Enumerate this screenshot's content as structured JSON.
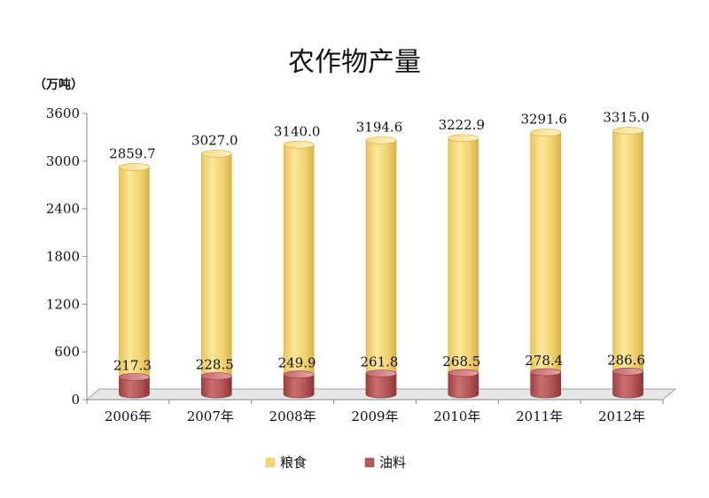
{
  "chart_data": {
    "type": "bar",
    "title": "农作物产量",
    "unit_label": "（万吨）",
    "categories": [
      "2006年",
      "2007年",
      "2008年",
      "2009年",
      "2010年",
      "2011年",
      "2012年"
    ],
    "series": [
      {
        "name": "粮食",
        "values": [
          2859.7,
          3027.0,
          3140.0,
          3194.6,
          3222.9,
          3291.6,
          3315.0
        ],
        "labels": [
          "2859.7",
          "3027.0",
          "3140.0",
          "3194.6",
          "3222.9",
          "3291.6",
          "3315.0"
        ],
        "color": "#F5D77A"
      },
      {
        "name": "油料",
        "values": [
          217.3,
          228.5,
          249.9,
          261.8,
          268.5,
          278.4,
          286.6
        ],
        "labels": [
          "217.3",
          "228.5",
          "249.9",
          "261.8",
          "268.5",
          "278.4",
          "286.6"
        ],
        "color": "#B8595C"
      }
    ],
    "ylim": [
      0,
      3600
    ],
    "yticks": [
      "0",
      "600",
      "1200",
      "1800",
      "2400",
      "3000",
      "3600"
    ],
    "legend_position": "bottom",
    "style": "3d-cylinder"
  }
}
